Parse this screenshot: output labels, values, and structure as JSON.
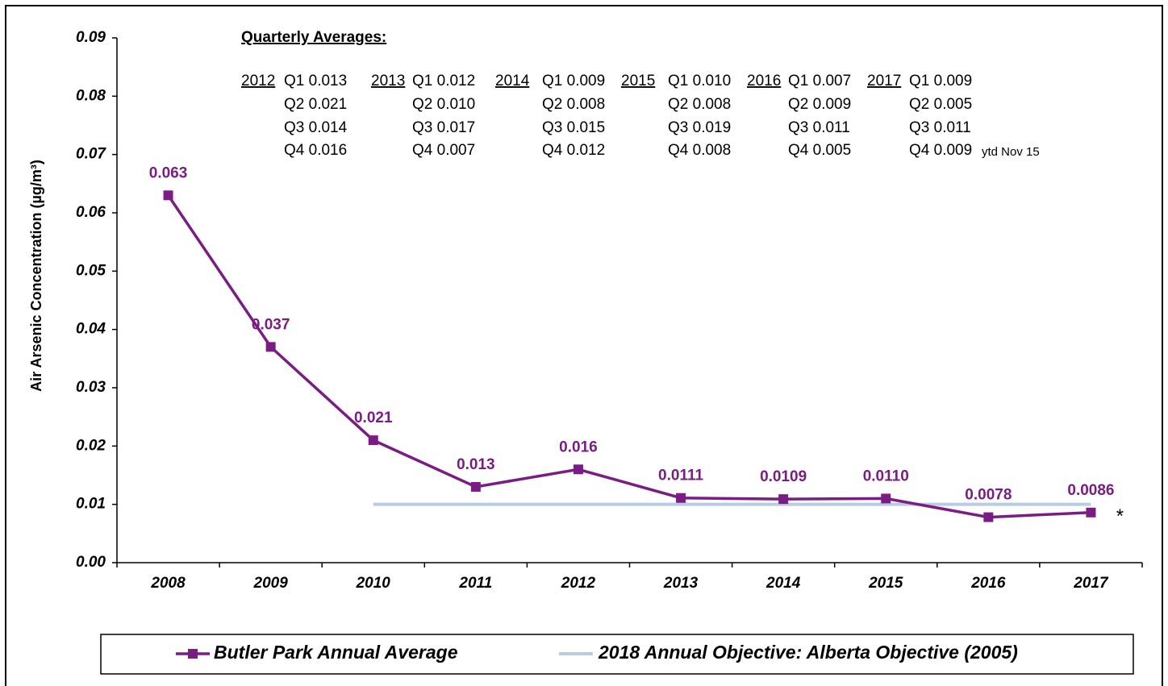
{
  "chart_data": {
    "type": "line",
    "y_label": "Air Arsenic Concentration (µg/m³)",
    "categories": [
      "2008",
      "2009",
      "2010",
      "2011",
      "2012",
      "2013",
      "2014",
      "2015",
      "2016",
      "2017"
    ],
    "series": [
      {
        "name": "Butler Park Annual Average",
        "color": "#7b1c85",
        "marker": "square",
        "values": [
          0.063,
          0.037,
          0.021,
          0.013,
          0.016,
          0.0111,
          0.0109,
          0.011,
          0.0078,
          0.0086
        ],
        "value_labels": [
          "0.063",
          "0.037",
          "0.021",
          "0.013",
          "0.016",
          "0.0111",
          "0.0109",
          "0.0110",
          "0.0078",
          "0.0086"
        ]
      },
      {
        "name": "2018 Annual Objective: Alberta Objective (2005)",
        "color": "#b8cce4",
        "marker": "none",
        "values": [
          null,
          null,
          0.01,
          0.01,
          0.01,
          0.01,
          0.01,
          0.01,
          0.01,
          0.01
        ]
      }
    ],
    "ylim": [
      0,
      0.09
    ],
    "yticks": [
      {
        "value": 0,
        "label": "0.00"
      },
      0.01,
      0.02,
      0.03,
      0.04,
      0.05,
      0.06,
      0.07,
      0.08,
      0.09
    ],
    "legend": "bottom",
    "asterisk": "*",
    "annotation": {
      "title": "Quarterly Averages:",
      "years": [
        {
          "year": "2012",
          "quarters": [
            "Q1 0.013",
            "Q2 0.021",
            "Q3 0.014",
            "Q4 0.016"
          ]
        },
        {
          "year": "2013",
          "quarters": [
            "Q1 0.012",
            "Q2  0.010",
            "Q3  0.017",
            "Q4  0.007"
          ]
        },
        {
          "year": "2014",
          "quarters": [
            "Q1 0.009",
            "Q2 0.008",
            "Q3 0.015",
            "Q4 0.012"
          ]
        },
        {
          "year": "2015",
          "quarters": [
            "Q1 0.010",
            "Q2 0.008",
            "Q3 0.019",
            "Q4 0.008"
          ]
        },
        {
          "year": "2016",
          "quarters": [
            "Q1 0.007",
            "Q2 0.009",
            "Q3 0.011",
            "Q4 0.005"
          ]
        },
        {
          "year": "2017",
          "quarters": [
            "Q1 0.009",
            "Q2 0.005",
            "Q3 0.011",
            "Q4 0.009"
          ],
          "note": "ytd Nov 15"
        }
      ]
    }
  }
}
